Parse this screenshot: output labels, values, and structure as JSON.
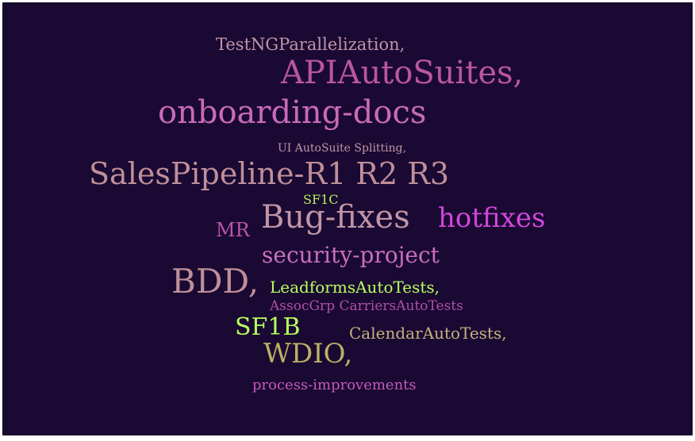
{
  "word_cloud": {
    "background_color": "#1a0933",
    "words": {
      "testng": {
        "text": "TestNGParallelization,",
        "color": "#c095a6"
      },
      "apiauto": {
        "text": "APIAutoSuites,",
        "color": "#b9579c"
      },
      "onboard": {
        "text": "onboarding-docs",
        "color": "#c96ab8"
      },
      "uiauto": {
        "text": "UI AutoSuite Splitting,",
        "color": "#c095a6"
      },
      "sales": {
        "text": "SalesPipeline-R1 R2 R3",
        "color": "#bf8f98"
      },
      "sf1c": {
        "text": "SF1C",
        "color": "#b5f25a"
      },
      "mr": {
        "text": "MR",
        "color": "#bb56a8"
      },
      "bugfix": {
        "text": "Bug-fixes",
        "color": "#c095a6"
      },
      "hotfix": {
        "text": "hotfixes",
        "color": "#d246dc"
      },
      "security": {
        "text": "security-project",
        "color": "#ca6fbf"
      },
      "bdd": {
        "text": "BDD,",
        "color": "#bf8f98"
      },
      "leadforms": {
        "text": "LeadformsAutoTests,",
        "color": "#b8ff60"
      },
      "assoc": {
        "text": "AssocGrp CarriersAutoTests",
        "color": "#b050a8"
      },
      "sf1b": {
        "text": "SF1B",
        "color": "#b8ff60"
      },
      "calendar": {
        "text": "CalendarAutoTests,",
        "color": "#c4b27c"
      },
      "wdio": {
        "text": "WDIO,",
        "color": "#bcb064"
      },
      "process": {
        "text": "process-improvements",
        "color": "#c45ab8"
      }
    }
  }
}
